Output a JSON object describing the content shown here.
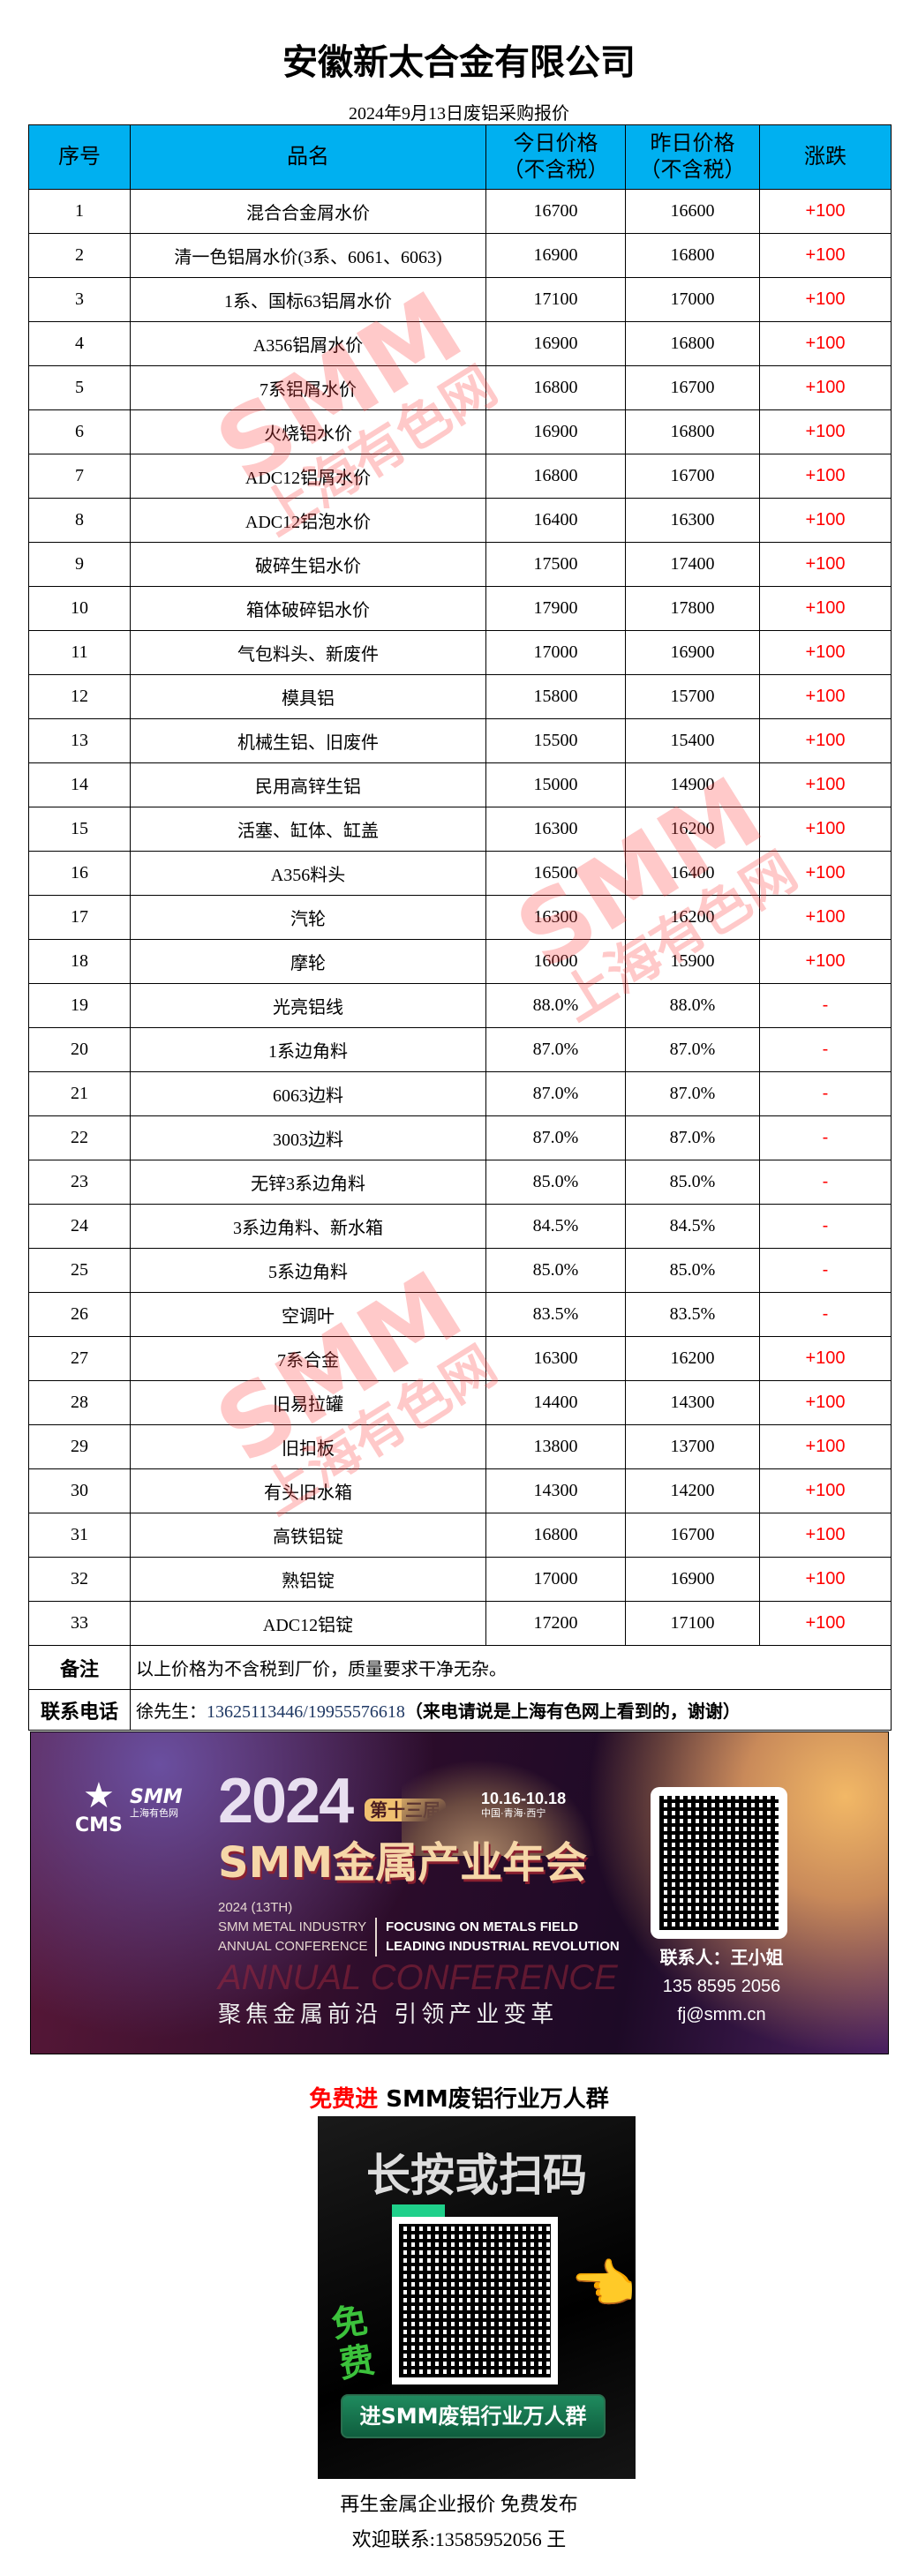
{
  "title": "安徽新太合金有限公司",
  "subtitle": "2024年9月13日废铝采购报价",
  "headers": {
    "no": "序号",
    "name": "品名",
    "today": "今日价格",
    "today2": "（不含税）",
    "yest": "昨日价格",
    "yest2": "（不含税）",
    "chg": "涨跌"
  },
  "rows": [
    [
      "1",
      "混合合金屑水价",
      "16700",
      "16600",
      "+100"
    ],
    [
      "2",
      "清一色铝屑水价(3系、6061、6063)",
      "16900",
      "16800",
      "+100"
    ],
    [
      "3",
      "1系、国标63铝屑水价",
      "17100",
      "17000",
      "+100"
    ],
    [
      "4",
      "A356铝屑水价",
      "16900",
      "16800",
      "+100"
    ],
    [
      "5",
      "7系铝屑水价",
      "16800",
      "16700",
      "+100"
    ],
    [
      "6",
      "火烧铝水价",
      "16900",
      "16800",
      "+100"
    ],
    [
      "7",
      "ADC12铝屑水价",
      "16800",
      "16700",
      "+100"
    ],
    [
      "8",
      "ADC12铝泡水价",
      "16400",
      "16300",
      "+100"
    ],
    [
      "9",
      "破碎生铝水价",
      "17500",
      "17400",
      "+100"
    ],
    [
      "10",
      "箱体破碎铝水价",
      "17900",
      "17800",
      "+100"
    ],
    [
      "11",
      "气包料头、新废件",
      "17000",
      "16900",
      "+100"
    ],
    [
      "12",
      "模具铝",
      "15800",
      "15700",
      "+100"
    ],
    [
      "13",
      "机械生铝、旧废件",
      "15500",
      "15400",
      "+100"
    ],
    [
      "14",
      "民用高锌生铝",
      "15000",
      "14900",
      "+100"
    ],
    [
      "15",
      "活塞、缸体、缸盖",
      "16300",
      "16200",
      "+100"
    ],
    [
      "16",
      "A356料头",
      "16500",
      "16400",
      "+100"
    ],
    [
      "17",
      "汽轮",
      "16300",
      "16200",
      "+100"
    ],
    [
      "18",
      "摩轮",
      "16000",
      "15900",
      "+100"
    ],
    [
      "19",
      "光亮铝线",
      "88.0%",
      "88.0%",
      "-"
    ],
    [
      "20",
      "1系边角料",
      "87.0%",
      "87.0%",
      "-"
    ],
    [
      "21",
      "6063边料",
      "87.0%",
      "87.0%",
      "-"
    ],
    [
      "22",
      "3003边料",
      "87.0%",
      "87.0%",
      "-"
    ],
    [
      "23",
      "无锌3系边角料",
      "85.0%",
      "85.0%",
      "-"
    ],
    [
      "24",
      "3系边角料、新水箱",
      "84.5%",
      "84.5%",
      "-"
    ],
    [
      "25",
      "5系边角料",
      "85.0%",
      "85.0%",
      "-"
    ],
    [
      "26",
      "空调叶",
      "83.5%",
      "83.5%",
      "-"
    ],
    [
      "27",
      "7系合金",
      "16300",
      "16200",
      "+100"
    ],
    [
      "28",
      "旧易拉罐",
      "14400",
      "14300",
      "+100"
    ],
    [
      "29",
      "旧扣板",
      "13800",
      "13700",
      "+100"
    ],
    [
      "30",
      "有头旧水箱",
      "14300",
      "14200",
      "+100"
    ],
    [
      "31",
      "高铁铝锭",
      "16800",
      "16700",
      "+100"
    ],
    [
      "32",
      "熟铝锭",
      "17000",
      "16900",
      "+100"
    ],
    [
      "33",
      "ADC12铝锭",
      "17200",
      "17100",
      "+100"
    ]
  ],
  "notes": {
    "label": "备注",
    "text": "以上价格为不含税到厂价，质量要求干净无杂。"
  },
  "contact": {
    "label": "联系电话",
    "prefix": "徐先生：",
    "phone": "13625113446/19955576618",
    "suffix": "（来电请说是上海有色网上看到的，谢谢）"
  },
  "watermark": {
    "big": "SMM",
    "small": "上海有色网"
  },
  "banner": {
    "logo1": "CMS",
    "logo2": "SMM",
    "logo2_sub": "上海有色网",
    "year": "2024",
    "edition": "第十三届",
    "dates": "10.16-10.18",
    "place": "中国·青海·西宁",
    "headline": "SMM金属产业年会",
    "en1": "2024 (13TH)",
    "en2": "SMM METAL INDUSTRY",
    "en3": "ANNUAL CONFERENCE",
    "en4": "FOCUSING ON METALS FIELD",
    "en5": "LEADING INDUSTRIAL REVOLUTION",
    "ghost": "ANNUAL CONFERENCE",
    "slogan": "聚焦金属前沿 引领产业变革",
    "contact_name": "联系人：王小姐",
    "contact_phone": "135 8595 2056",
    "contact_email": "fj@smm.cn"
  },
  "group": {
    "free": "免费进",
    "title": " SMM废铝行业万人群",
    "poster_head": "长按或扫码",
    "poster_free": "免费",
    "poster_btn": "进SMM废铝行业万人群"
  },
  "footer": {
    "line1": "再生金属企业报价  免费发布",
    "line2": "欢迎联系:13585952056  王"
  },
  "colors": {
    "header_bg": "#00B0F0",
    "up": "#FF0000"
  }
}
